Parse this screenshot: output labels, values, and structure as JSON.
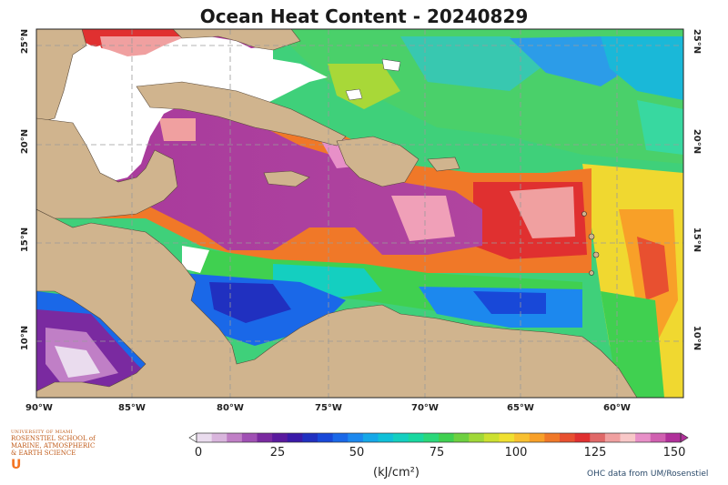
{
  "title": "Ocean Heat Content - 20240829",
  "colors": {
    "land": "#d0b48e",
    "nodata": "#ffffff",
    "grid": "#9a9a9a"
  },
  "map": {
    "lon_range": [
      -90,
      -56.8
    ],
    "lat_range": [
      6.8,
      25.5
    ],
    "lon_ticks": [
      "90°W",
      "85°W",
      "80°W",
      "75°W",
      "70°W",
      "65°W",
      "60°W"
    ],
    "lat_ticks_left": [
      "25°N",
      "20°N",
      "15°N",
      "10°N"
    ],
    "lat_ticks_right": [
      "25°N",
      "20°N",
      "15°N",
      "10°N"
    ]
  },
  "colorbar": {
    "ticks": [
      "0",
      "25",
      "50",
      "75",
      "100",
      "125",
      "150"
    ],
    "units": "(kJ/cm²)",
    "min": 0,
    "max": 150,
    "colors": [
      "#eadcee",
      "#d9b5dd",
      "#c07fc6",
      "#a050b4",
      "#7a2aa0",
      "#5a1a9e",
      "#3a1aa8",
      "#2030c0",
      "#1848d8",
      "#1a68e8",
      "#1c88ee",
      "#16a8e8",
      "#10c0d8",
      "#14cfc0",
      "#18d8a0",
      "#2ad87a",
      "#40d050",
      "#6ed040",
      "#a0d838",
      "#cce030",
      "#f0e030",
      "#f8c030",
      "#f8a028",
      "#f07828",
      "#e85030",
      "#e03030",
      "#e06868",
      "#f0a0a0",
      "#f8c8c8",
      "#e890c8",
      "#d060b0",
      "#b0309a"
    ]
  },
  "logo": {
    "line1": "UNIVERSITY OF MIAMI",
    "line2": "ROSENSTIEL SCHOOL of",
    "line3": "MARINE, ATMOSPHERIC",
    "line4": "& EARTH SCIENCE",
    "mark": "U"
  },
  "credit": "OHC data from UM/Rosenstiel"
}
